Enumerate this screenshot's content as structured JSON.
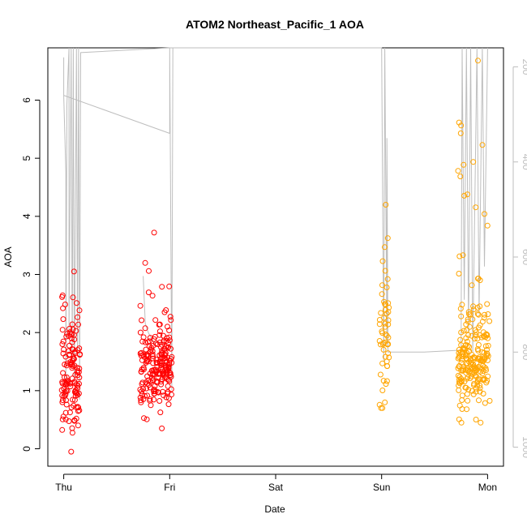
{
  "chart_data": {
    "type": "scatter",
    "title": "ATOM2 Northeast_Pacific_1 AOA",
    "xlabel": "Date",
    "ylabel": "AOA",
    "x_ticks": [
      {
        "label": "Thu",
        "value": 0
      },
      {
        "label": "Fri",
        "value": 1
      },
      {
        "label": "Sat",
        "value": 2
      },
      {
        "label": "Sun",
        "value": 3
      },
      {
        "label": "Mon",
        "value": 4
      }
    ],
    "xlim": [
      -0.15,
      4.15
    ],
    "ylim": [
      -0.3,
      6.9
    ],
    "y_ticks": [
      0,
      1,
      2,
      3,
      4,
      5,
      6
    ],
    "secondary_axis": {
      "ticks": [
        200,
        400,
        600,
        800,
        1000
      ],
      "lim": [
        1040,
        160
      ],
      "color": "#bebebe"
    },
    "grid": false,
    "series": [
      {
        "color": "#ff0000",
        "clusters": [
          {
            "x0": -0.02,
            "x1": 0.16,
            "n": 130,
            "ymin": -0.05,
            "ymax": 3.05,
            "center": 1.15,
            "spread": 0.55
          },
          {
            "x0": 0.72,
            "x1": 1.02,
            "n": 210,
            "ymin": 0.35,
            "ymax": 3.72,
            "center": 1.35,
            "spread": 0.35
          }
        ]
      },
      {
        "color": "#ffa500",
        "clusters": [
          {
            "x0": 2.98,
            "x1": 3.07,
            "n": 55,
            "ymin": 0.7,
            "ymax": 4.2,
            "center": 1.75,
            "spread": 0.6
          },
          {
            "x0": 3.72,
            "x1": 4.02,
            "n": 230,
            "ymin": 0.45,
            "ymax": 6.68,
            "center": 1.45,
            "spread": 0.4
          }
        ]
      }
    ],
    "altitude_trace": {
      "color": "#bebebe",
      "points": [
        [
          0.0,
          180
        ],
        [
          0.0,
          260
        ],
        [
          0.02,
          420
        ],
        [
          0.02,
          900
        ],
        [
          0.03,
          280
        ],
        [
          0.05,
          150
        ],
        [
          0.05,
          760
        ],
        [
          0.07,
          150
        ],
        [
          0.08,
          820
        ],
        [
          0.09,
          150
        ],
        [
          0.1,
          860
        ],
        [
          0.12,
          150
        ],
        [
          0.13,
          800
        ],
        [
          0.14,
          150
        ],
        [
          0.15,
          900
        ],
        [
          0.16,
          170
        ],
        [
          1.0,
          140
        ],
        [
          1.3,
          150
        ],
        [
          2.2,
          150
        ],
        [
          3.0,
          150
        ],
        [
          3.02,
          820
        ],
        [
          3.03,
          150
        ],
        [
          3.05,
          780
        ],
        [
          3.05,
          350
        ],
        [
          3.06,
          800
        ],
        [
          3.4,
          800
        ],
        [
          3.75,
          796
        ],
        [
          3.76,
          150
        ],
        [
          3.78,
          690
        ],
        [
          3.8,
          150
        ],
        [
          3.82,
          760
        ],
        [
          3.84,
          150
        ],
        [
          3.86,
          800
        ],
        [
          3.9,
          150
        ],
        [
          3.92,
          720
        ],
        [
          3.95,
          150
        ],
        [
          3.97,
          620
        ],
        [
          4.0,
          150
        ]
      ],
      "branch": [
        [
          0.0,
          260
        ],
        [
          1.0,
          340
        ],
        [
          1.0,
          160
        ],
        [
          1.02,
          880
        ],
        [
          1.03,
          160
        ]
      ],
      "fragment": [
        [
          0.75,
          640
        ],
        [
          0.77,
          740
        ],
        [
          0.8,
          760
        ],
        [
          0.85,
          780
        ],
        [
          0.95,
          780
        ]
      ]
    }
  }
}
